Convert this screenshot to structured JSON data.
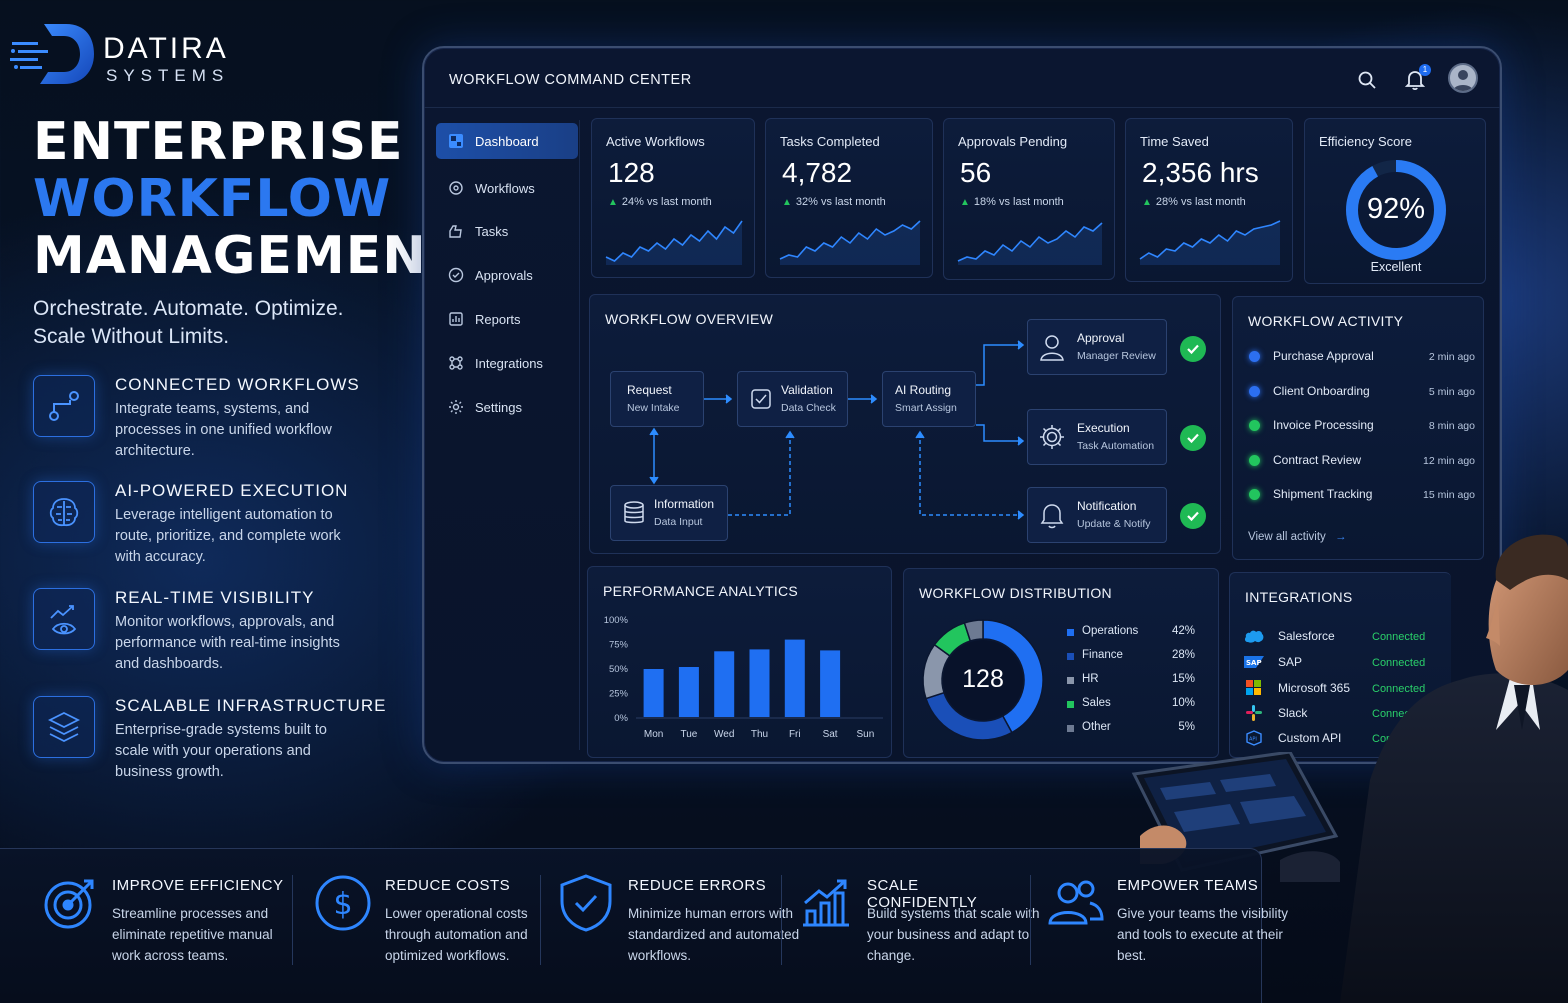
{
  "brand": {
    "name": "DATIRA",
    "sub": "SYSTEMS"
  },
  "hero": {
    "line1": "ENTERPRISE",
    "line2": "WORKFLOW",
    "line3": "MANAGEMENT"
  },
  "tagline": {
    "line1": "Orchestrate. Automate. Optimize.",
    "line2": "Scale Without Limits."
  },
  "features": [
    {
      "title": "CONNECTED WORKFLOWS",
      "desc": "Integrate teams, systems, and processes in one unified workflow architecture."
    },
    {
      "title": "AI-POWERED EXECUTION",
      "desc": "Leverage intelligent automation to route, prioritize, and complete work with accuracy."
    },
    {
      "title": "REAL-TIME VISIBILITY",
      "desc": "Monitor workflows, approvals, and performance with real-time insights and dashboards."
    },
    {
      "title": "SCALABLE INFRASTRUCTURE",
      "desc": "Enterprise-grade systems built to scale with your operations and business growth."
    }
  ],
  "dashboard": {
    "title": "WORKFLOW COMMAND CENTER",
    "notification_count": "1",
    "nav": [
      {
        "label": "Dashboard",
        "icon": "dashboard-icon"
      },
      {
        "label": "Workflows",
        "icon": "workflow-icon"
      },
      {
        "label": "Tasks",
        "icon": "tasks-icon"
      },
      {
        "label": "Approvals",
        "icon": "approvals-icon"
      },
      {
        "label": "Reports",
        "icon": "reports-icon"
      },
      {
        "label": "Integrations",
        "icon": "integrations-icon"
      },
      {
        "label": "Settings",
        "icon": "settings-icon"
      }
    ],
    "kpis": [
      {
        "label": "Active Workflows",
        "value": "128",
        "delta": "24% vs last month"
      },
      {
        "label": "Tasks Completed",
        "value": "4,782",
        "delta": "32% vs last month"
      },
      {
        "label": "Approvals Pending",
        "value": "56",
        "delta": "18% vs last month"
      },
      {
        "label": "Time Saved",
        "value": "2,356 hrs",
        "delta": "28% vs last month"
      }
    ],
    "efficiency": {
      "label": "Efficiency Score",
      "value": "92%",
      "fraction": 0.92,
      "rating": "Excellent"
    },
    "overview": {
      "title": "WORKFLOW OVERVIEW",
      "nodes": {
        "request": {
          "title": "Request",
          "sub": "New Intake"
        },
        "validation": {
          "title": "Validation",
          "sub": "Data Check"
        },
        "routing": {
          "title": "AI Routing",
          "sub": "Smart Assign"
        },
        "information": {
          "title": "Information",
          "sub": "Data Input"
        },
        "approval": {
          "title": "Approval",
          "sub": "Manager Review"
        },
        "execution": {
          "title": "Execution",
          "sub": "Task Automation"
        },
        "notification": {
          "title": "Notification",
          "sub": "Update & Notify"
        }
      }
    },
    "activity": {
      "title": "WORKFLOW ACTIVITY",
      "items": [
        {
          "name": "Purchase Approval",
          "time": "2 min ago",
          "color": "#2c6ff0"
        },
        {
          "name": "Client Onboarding",
          "time": "5 min ago",
          "color": "#2c6ff0"
        },
        {
          "name": "Invoice Processing",
          "time": "8 min ago",
          "color": "#22c55e"
        },
        {
          "name": "Contract Review",
          "time": "12 min ago",
          "color": "#22c55e"
        },
        {
          "name": "Shipment Tracking",
          "time": "15 min ago",
          "color": "#22c55e"
        }
      ],
      "view_all": "View all activity"
    },
    "performance": {
      "title": "PERFORMANCE ANALYTICS"
    },
    "distribution": {
      "title": "WORKFLOW DISTRIBUTION",
      "center": "128",
      "items": [
        {
          "name": "Operations",
          "pct": "42%",
          "value": 42,
          "color": "#1f6ff2"
        },
        {
          "name": "Finance",
          "pct": "28%",
          "value": 28,
          "color": "#1a4fb8"
        },
        {
          "name": "HR",
          "pct": "15%",
          "value": 15,
          "color": "#8a96ab"
        },
        {
          "name": "Sales",
          "pct": "10%",
          "value": 10,
          "color": "#22c55e"
        },
        {
          "name": "Other",
          "pct": "5%",
          "value": 5,
          "color": "#6d7a92"
        }
      ]
    },
    "integrations": {
      "title": "INTEGRATIONS",
      "items": [
        {
          "name": "Salesforce",
          "status": "Connected",
          "logo": "salesforce-logo"
        },
        {
          "name": "SAP",
          "status": "Connected",
          "logo": "sap-logo"
        },
        {
          "name": "Microsoft 365",
          "status": "Connected",
          "logo": "microsoft-logo"
        },
        {
          "name": "Slack",
          "status": "Connected",
          "logo": "slack-logo"
        },
        {
          "name": "Custom API",
          "status": "Connected",
          "logo": "api-logo"
        }
      ]
    }
  },
  "benefits": [
    {
      "title": "IMPROVE EFFICIENCY",
      "desc": "Streamline processes and eliminate repetitive manual work across teams.",
      "icon": "target-icon"
    },
    {
      "title": "REDUCE COSTS",
      "desc": "Lower operational costs through automation and optimized workflows.",
      "icon": "dollar-icon"
    },
    {
      "title": "REDUCE ERRORS",
      "desc": "Minimize human errors with standardized and automated workflows.",
      "icon": "shield-icon"
    },
    {
      "title": "SCALE CONFIDENTLY",
      "desc": "Build systems that scale with your business and adapt to change.",
      "icon": "growth-chart-icon"
    },
    {
      "title": "EMPOWER TEAMS",
      "desc": "Give your teams the visibility and tools to execute at their best.",
      "icon": "team-icon"
    }
  ],
  "chart_data": {
    "type": "bar",
    "title": "PERFORMANCE ANALYTICS",
    "categories": [
      "Mon",
      "Tue",
      "Wed",
      "Thu",
      "Fri",
      "Sat",
      "Sun"
    ],
    "values": [
      49,
      51,
      67,
      69,
      79,
      68,
      0
    ],
    "ylim": [
      0,
      100
    ],
    "yticks": [
      "100%",
      "75%",
      "50%",
      "25%",
      "0%"
    ],
    "color": "#1f6ff2"
  }
}
